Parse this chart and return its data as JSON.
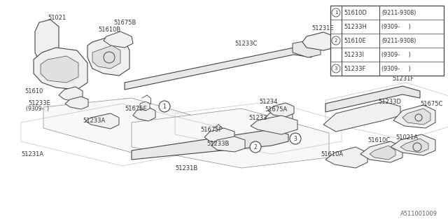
{
  "bg_color": "#ffffff",
  "lc": "#444444",
  "footer_code": "A511001009",
  "table": {
    "rows": [
      {
        "circle": "1",
        "part": "51610D",
        "note": "(9211-9308)"
      },
      {
        "circle": "",
        "part": "51233H",
        "note": "(9309-     )"
      },
      {
        "circle": "2",
        "part": "51610E",
        "note": "(9211-9308)"
      },
      {
        "circle": "",
        "part": "51233I",
        "note": "(9309-     )"
      },
      {
        "circle": "3",
        "part": "51233F",
        "note": "(9309-     )"
      }
    ]
  }
}
